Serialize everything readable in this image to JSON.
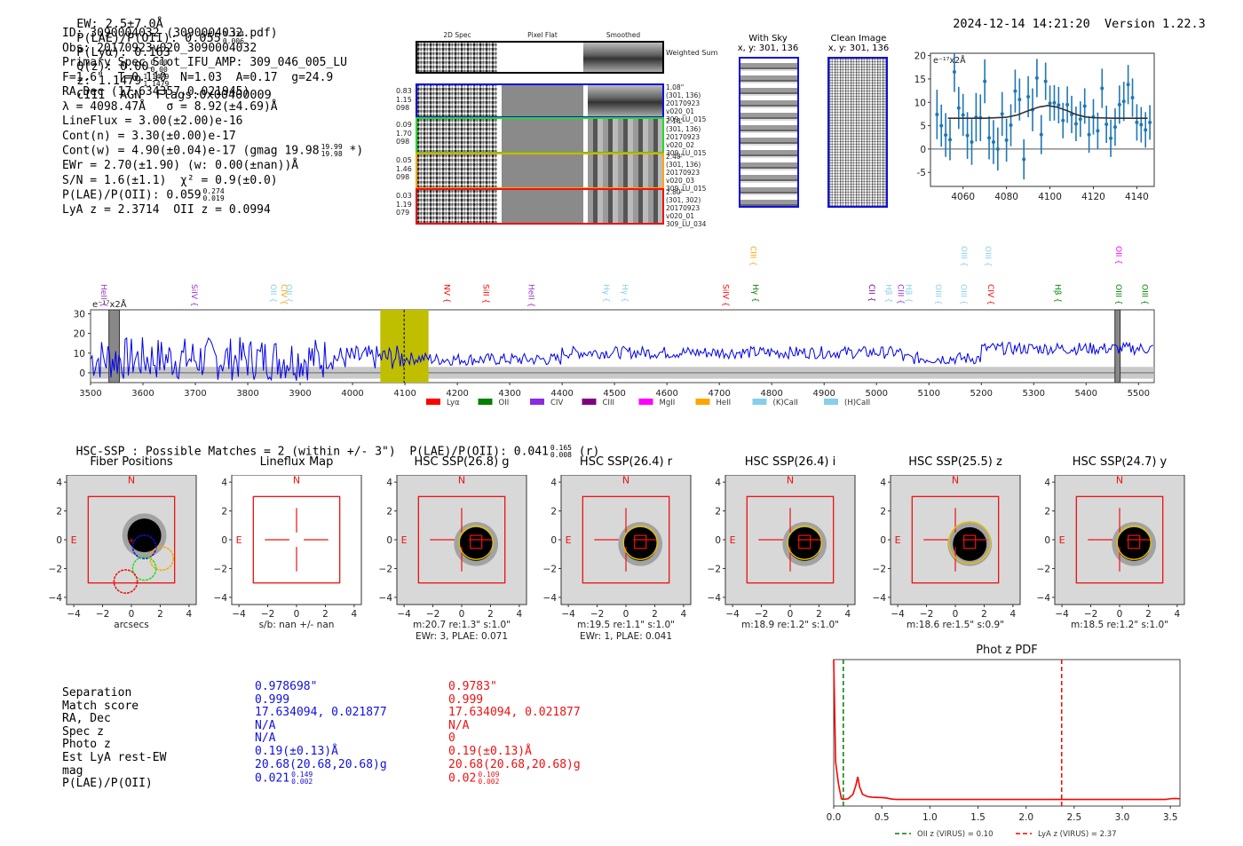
{
  "header": {
    "ew": "EW: 2.5±7.0Å",
    "plae_label": "P(LAE)/P(OII): 0.055",
    "plae_hi": "0.334",
    "plae_lo": "0.006",
    "plya": "P(Lyα): 0.163",
    "qz_label": "Q(z): 0.00",
    "qz_hi": "0.00",
    "qz_lo": "0.00",
    "z_label": "z: 1.1479",
    "z_hi": "1.1479",
    "z_lo": "1.1479",
    "tail": "CIII  AGN  Flags:0x00400009",
    "datetime": "2024-12-14 14:21:20",
    "version": "Version 1.22.3"
  },
  "info": {
    "id": "ID: 3090004032 (3090004032.pdf)",
    "obs": "Obs: 20170923v020_3090004032",
    "primary": "Primary Spec_Slot_IFU_AMP: 309_046_005_LU",
    "params": "F=1.6\"  T=0.110  N=1.03  A=0.17  g=24.9",
    "radec": "RA,Dec (17.634357,0.021945)",
    "lambda": "λ = 4098.47Å   σ = 8.92(±4.69)Å",
    "lineflux": "LineFlux = 3.00(±2.00)e-16",
    "contn": "Cont(n) = 3.30(±0.00)e-17",
    "contw": "Cont(w) = 4.90(±0.04)e-17 (gmag 19.98",
    "contw_hi": "19.99",
    "contw_lo": "19.98",
    "contw_tail": "*)",
    "ewr": "EWr = 2.70(±1.90) (w: 0.00(±nan))Å",
    "sn": "S/N = 1.6(±1.1)  χ² = 0.9(±0.0)",
    "plae": "P(LAE)/P(OII): 0.059",
    "plae_hi": "0.274",
    "plae_lo": "0.019",
    "lya_z": "LyA z = 2.3714  OII z = 0.0994"
  },
  "spec2d": {
    "col_headers": [
      "2D Spec",
      "Pixel Flat",
      "Smoothed"
    ],
    "weighted_sum": "Weighted Sum",
    "fibers": [
      {
        "color": "#1010e0",
        "nums": [
          "0.83",
          "1.15",
          "098"
        ],
        "side": [
          "1.08\"",
          "(301, 136)",
          "20170923",
          "v020_01",
          "309_LU_015"
        ]
      },
      {
        "color": "#22dd22",
        "nums": [
          "0.09",
          "1.70",
          "098"
        ],
        "side": [
          "2.18\"",
          "(301, 136)",
          "20170923",
          "v020_02",
          "309_LU_015"
        ]
      },
      {
        "color": "#ffa500",
        "nums": [
          "0.05",
          "1.46",
          "098"
        ],
        "side": [
          "2.48\"",
          "(301, 136)",
          "20170923",
          "v020_03",
          "309_LU_015"
        ]
      },
      {
        "color": "#ee1111",
        "nums": [
          "0.03",
          "1.19",
          "079"
        ],
        "side": [
          "2.80\"",
          "(301, 302)",
          "20170923",
          "v020_01",
          "309_LU_034"
        ]
      }
    ]
  },
  "stamps": {
    "with_sky_title": "With Sky",
    "with_sky_sub": "x, y: 301, 136",
    "clean_title": "Clean Image",
    "clean_sub": "x, y: 301, 136"
  },
  "chart_data": [
    {
      "type": "scatter",
      "title": "",
      "annotation": "e⁻¹⁷x2Å",
      "xlabel": "",
      "ylabel": "",
      "xlim": [
        4045,
        4148
      ],
      "ylim": [
        -8,
        20.5
      ],
      "xticks": [
        4060,
        4080,
        4100,
        4120,
        4140
      ],
      "yticks": [
        -5,
        0,
        5,
        10,
        15,
        20
      ],
      "series": [
        {
          "name": "data",
          "x": [
            4048,
            4050,
            4052,
            4054,
            4056,
            4058,
            4060,
            4062,
            4064,
            4066,
            4068,
            4070,
            4072,
            4074,
            4076,
            4078,
            4080,
            4082,
            4084,
            4086,
            4088,
            4090,
            4092,
            4094,
            4096,
            4098,
            4100,
            4102,
            4104,
            4106,
            4108,
            4110,
            4112,
            4114,
            4116,
            4118,
            4120,
            4122,
            4124,
            4126,
            4128,
            4130,
            4132,
            4134,
            4136,
            4138,
            4140,
            4142,
            4144,
            4146
          ],
          "y": [
            7.4,
            5.0,
            3.0,
            2.0,
            16.5,
            8.8,
            7.3,
            2.9,
            1.5,
            6.8,
            6.7,
            14.5,
            2.4,
            1.5,
            0.0,
            7.5,
            1.9,
            5.1,
            12.4,
            10.6,
            -2.2,
            11.2,
            8.4,
            15.2,
            3.1,
            14.5,
            9.8,
            9.9,
            9.4,
            6.1,
            9.5,
            7.4,
            5.4,
            6.4,
            9.2,
            3.1,
            6.9,
            3.9,
            13.0,
            5.3,
            2.3,
            4.7,
            9.5,
            10.2,
            13.8,
            11.0,
            5.7,
            5.2,
            4.1,
            5.7
          ],
          "err": [
            5.3,
            4.5,
            4.7,
            4.4,
            4.3,
            4.5,
            4.5,
            5.0,
            4.9,
            5.2,
            5.0,
            4.7,
            4.6,
            4.7,
            4.6,
            4.7,
            4.6,
            4.5,
            4.6,
            4.5,
            4.3,
            4.4,
            4.6,
            4.1,
            4.2,
            4.0,
            3.8,
            3.8,
            3.9,
            3.8,
            3.9,
            4.0,
            3.7,
            3.8,
            3.8,
            3.9,
            3.8,
            3.9,
            4.2,
            4.0,
            4.0,
            4.0,
            4.1,
            4.2,
            4.2,
            4.1,
            3.9,
            3.8,
            3.8,
            3.7
          ]
        },
        {
          "name": "fit",
          "x": [
            4053,
            4060,
            4070,
            4080,
            4085,
            4090,
            4095,
            4099,
            4103,
            4108,
            4112,
            4116,
            4120,
            4130,
            4145
          ],
          "y": [
            6.6,
            6.6,
            6.6,
            6.8,
            7.3,
            8.2,
            9.0,
            9.3,
            9.0,
            8.2,
            7.4,
            6.9,
            6.7,
            6.6,
            6.6
          ]
        }
      ],
      "hline": 0
    },
    {
      "type": "line",
      "title": "",
      "annotation": "e⁻¹⁷x2Å",
      "xlim": [
        3500,
        5530
      ],
      "ylim": [
        -5,
        32
      ],
      "xticks": [
        3500,
        3600,
        3700,
        3800,
        3900,
        4000,
        4100,
        4200,
        4300,
        4400,
        4500,
        4600,
        4700,
        4800,
        4900,
        5000,
        5100,
        5200,
        5300,
        5400,
        5500
      ],
      "yticks": [
        0,
        10,
        20,
        30
      ],
      "highlight_band": [
        4053,
        4145
      ],
      "marker_line": 4098.47,
      "gray_bands": [
        [
          3535,
          3555
        ],
        [
          5455,
          5465
        ]
      ],
      "legend": [
        {
          "label": "Lyα",
          "color": "#ff0000"
        },
        {
          "label": "OII",
          "color": "#008000"
        },
        {
          "label": "CIV",
          "color": "#8a2be2"
        },
        {
          "label": "CIII",
          "color": "#800080"
        },
        {
          "label": "MgII",
          "color": "#ff00ff"
        },
        {
          "label": "HeII",
          "color": "#ffa500"
        },
        {
          "label": "(K)CaII",
          "color": "#87ceeb"
        },
        {
          "label": "(H)CaII",
          "color": "#87ceeb"
        }
      ],
      "line_labels": [
        {
          "label": "HeII",
          "x": 3527,
          "row": 1,
          "color": "#9932cc"
        },
        {
          "label": "SiIV",
          "x": 3700,
          "row": 1,
          "color": "#9932cc"
        },
        {
          "label": "OII",
          "x": 3851,
          "row": 1,
          "color": "#87ceeb"
        },
        {
          "label": "CIV",
          "x": 3871,
          "row": 1,
          "color": "#ffa500"
        },
        {
          "label": "OII",
          "x": 3880,
          "row": 1,
          "color": "#87ceeb"
        },
        {
          "label": "NV",
          "x": 4182,
          "row": 1,
          "color": "#ff0000"
        },
        {
          "label": "SiII",
          "x": 4257,
          "row": 1,
          "color": "#ff0000"
        },
        {
          "label": "HeII",
          "x": 4343,
          "row": 1,
          "color": "#9932cc"
        },
        {
          "label": "Hγ",
          "x": 4486,
          "row": 1,
          "color": "#87ceeb"
        },
        {
          "label": "Hγ",
          "x": 4522,
          "row": 1,
          "color": "#87ceeb"
        },
        {
          "label": "SiIV",
          "x": 4714,
          "row": 1,
          "color": "#ff0000"
        },
        {
          "label": "CIII",
          "x": 4767,
          "row": 0,
          "color": "#ffa500"
        },
        {
          "label": "Hγ",
          "x": 4771,
          "row": 1,
          "color": "#008000"
        },
        {
          "label": "CII",
          "x": 4993,
          "row": 1,
          "color": "#800080"
        },
        {
          "label": "Hβ",
          "x": 5025,
          "row": 1,
          "color": "#87ceeb"
        },
        {
          "label": "CIII",
          "x": 5048,
          "row": 1,
          "color": "#9932cc"
        },
        {
          "label": "Hβ",
          "x": 5063,
          "row": 1,
          "color": "#87ceeb"
        },
        {
          "label": "OIII",
          "x": 5120,
          "row": 1,
          "color": "#87ceeb"
        },
        {
          "label": "OIII",
          "x": 5169,
          "row": 0,
          "color": "#87ceeb"
        },
        {
          "label": "OIII",
          "x": 5168,
          "row": 1,
          "color": "#87ceeb"
        },
        {
          "label": "OIII",
          "x": 5215,
          "row": 0,
          "color": "#87ceeb"
        },
        {
          "label": "CIV",
          "x": 5220,
          "row": 1,
          "color": "#ff0000"
        },
        {
          "label": "Hβ",
          "x": 5348,
          "row": 1,
          "color": "#008000"
        },
        {
          "label": "OII",
          "x": 5464,
          "row": 0,
          "color": "#ff00ff"
        },
        {
          "label": "OIII",
          "x": 5464,
          "row": 1,
          "color": "#008000"
        },
        {
          "label": "OIII",
          "x": 5514,
          "row": 1,
          "color": "#008000"
        }
      ]
    },
    {
      "type": "line",
      "title": "Phot z PDF",
      "xlim": [
        0.0,
        3.6
      ],
      "xticks": [
        "0.0",
        "0.5",
        "1.0",
        "1.5",
        "2.0",
        "2.5",
        "3.0",
        "3.5"
      ],
      "series": [
        {
          "name": "pdf",
          "x": [
            0.0,
            0.02,
            0.05,
            0.08,
            0.1,
            0.15,
            0.2,
            0.23,
            0.25,
            0.27,
            0.3,
            0.35,
            0.4,
            0.5,
            0.55,
            0.6,
            0.65,
            1.0,
            2.0,
            3.0,
            3.45,
            3.5,
            3.55,
            3.6
          ],
          "y": [
            1.0,
            0.3,
            0.15,
            0.05,
            0.045,
            0.05,
            0.08,
            0.14,
            0.2,
            0.13,
            0.08,
            0.065,
            0.06,
            0.058,
            0.055,
            0.048,
            0.045,
            0.045,
            0.045,
            0.045,
            0.045,
            0.05,
            0.052,
            0.05
          ]
        }
      ],
      "vlines": [
        {
          "x": 0.1,
          "color": "#008000",
          "label": "OII z (VIRUS) = 0.10"
        },
        {
          "x": 2.37,
          "color": "#ff0000",
          "label": "LyA z (VIRUS) = 2.37"
        }
      ]
    }
  ],
  "hsc": {
    "summary": "HSC-SSP : Possible Matches = 2 (within +/- 3\")  P(LAE)/P(OII): 0.041",
    "summary_hi": "0.165",
    "summary_lo": "0.008",
    "summary_tail": "(r)",
    "panels": [
      {
        "title": "Fiber Positions",
        "xlabel": "arcsecs",
        "xlabel2": ""
      },
      {
        "title": "Lineflux Map",
        "xlabel": "s/b: nan +/- nan",
        "xlabel2": ""
      },
      {
        "title": "HSC SSP(26.8) g",
        "xlabel": "m:20.7  re:1.3\"  s:1.0\"",
        "xlabel2": "EWr: 3, PLAE: 0.071"
      },
      {
        "title": "HSC SSP(26.4) r",
        "xlabel": "m:19.5  re:1.1\"  s:1.0\"",
        "xlabel2": "EWr: 1, PLAE: 0.041"
      },
      {
        "title": "HSC SSP(26.4) i",
        "xlabel": "m:18.9  re:1.2\"  s:1.0\"",
        "xlabel2": ""
      },
      {
        "title": "HSC SSP(25.5) z",
        "xlabel": "m:18.6  re:1.5\"  s:0.9\"",
        "xlabel2": ""
      },
      {
        "title": "HSC SSP(24.7) y",
        "xlabel": "m:18.5  re:1.2\"  s:1.0\"",
        "xlabel2": ""
      }
    ],
    "axis_ticks": [
      "-4",
      "-2",
      "0",
      "2",
      "4"
    ],
    "compass_n": "N",
    "compass_e": "E"
  },
  "matches": {
    "labels": [
      "Separation",
      "Match score",
      "RA, Dec",
      "Spec z",
      "Photo z",
      "Est LyA rest-EW",
      "mag",
      "P(LAE)/P(OII)"
    ],
    "blue": {
      "color": "#1010e0",
      "values": [
        "0.978698\"",
        "0.999",
        "17.634094, 0.021877",
        "N/A",
        "N/A",
        "0.19(±0.13)Å",
        "20.68(20.68,20.68)g",
        "0.021"
      ],
      "plae_hi": "0.149",
      "plae_lo": "0.002"
    },
    "red": {
      "color": "#ee1111",
      "values": [
        "0.9783\"",
        "0.999",
        "17.634094, 0.021877",
        "N/A",
        "0",
        "0.19(±0.13)Å",
        "20.68(20.68,20.68)g",
        "0.02"
      ],
      "plae_hi": "0.109",
      "plae_lo": "0.002"
    }
  }
}
